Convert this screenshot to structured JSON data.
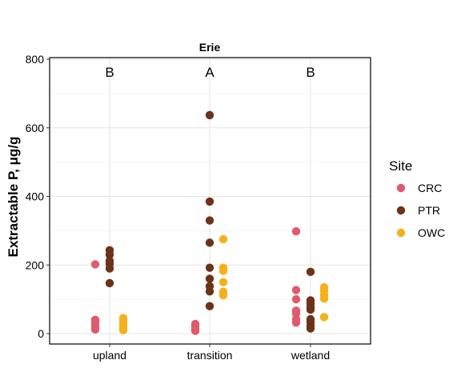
{
  "chart_data": {
    "type": "scatter",
    "title": "Erie",
    "xlabel": "",
    "ylabel": "Extractable P, μg/g",
    "categories": [
      "upland",
      "transition",
      "wetland"
    ],
    "ylim": [
      -25,
      800
    ],
    "yticks": [
      0,
      200,
      400,
      600,
      800
    ],
    "grid": true,
    "legend": {
      "title": "Site",
      "position": "right"
    },
    "letters": [
      {
        "category": "upland",
        "label": "B"
      },
      {
        "category": "transition",
        "label": "A"
      },
      {
        "category": "wetland",
        "label": "B"
      }
    ],
    "series": [
      {
        "name": "CRC",
        "color": "#E05A6F",
        "points": [
          {
            "category": "upland",
            "y": 202
          },
          {
            "category": "upland",
            "y": 40
          },
          {
            "category": "upland",
            "y": 32
          },
          {
            "category": "upland",
            "y": 25
          },
          {
            "category": "upland",
            "y": 18
          },
          {
            "category": "upland",
            "y": 12
          },
          {
            "category": "transition",
            "y": 28
          },
          {
            "category": "transition",
            "y": 20
          },
          {
            "category": "transition",
            "y": 12
          },
          {
            "category": "transition",
            "y": 8
          },
          {
            "category": "wetland",
            "y": 298
          },
          {
            "category": "wetland",
            "y": 127
          },
          {
            "category": "wetland",
            "y": 100
          },
          {
            "category": "wetland",
            "y": 67
          },
          {
            "category": "wetland",
            "y": 58
          },
          {
            "category": "wetland",
            "y": 42
          },
          {
            "category": "wetland",
            "y": 32
          }
        ]
      },
      {
        "name": "PTR",
        "color": "#6B3419",
        "points": [
          {
            "category": "upland",
            "y": 243
          },
          {
            "category": "upland",
            "y": 230
          },
          {
            "category": "upland",
            "y": 212
          },
          {
            "category": "upland",
            "y": 203
          },
          {
            "category": "upland",
            "y": 190
          },
          {
            "category": "upland",
            "y": 147
          },
          {
            "category": "transition",
            "y": 637
          },
          {
            "category": "transition",
            "y": 385
          },
          {
            "category": "transition",
            "y": 330
          },
          {
            "category": "transition",
            "y": 265
          },
          {
            "category": "transition",
            "y": 192
          },
          {
            "category": "transition",
            "y": 160
          },
          {
            "category": "transition",
            "y": 138
          },
          {
            "category": "transition",
            "y": 123
          },
          {
            "category": "transition",
            "y": 80
          },
          {
            "category": "wetland",
            "y": 180
          },
          {
            "category": "wetland",
            "y": 97
          },
          {
            "category": "wetland",
            "y": 88
          },
          {
            "category": "wetland",
            "y": 78
          },
          {
            "category": "wetland",
            "y": 70
          },
          {
            "category": "wetland",
            "y": 42
          },
          {
            "category": "wetland",
            "y": 33
          },
          {
            "category": "wetland",
            "y": 22
          },
          {
            "category": "wetland",
            "y": 15
          }
        ]
      },
      {
        "name": "OWC",
        "color": "#F6B01A",
        "points": [
          {
            "category": "upland",
            "y": 45
          },
          {
            "category": "upland",
            "y": 36
          },
          {
            "category": "upland",
            "y": 25
          },
          {
            "category": "upland",
            "y": 17
          },
          {
            "category": "upland",
            "y": 10
          },
          {
            "category": "transition",
            "y": 275
          },
          {
            "category": "transition",
            "y": 192
          },
          {
            "category": "transition",
            "y": 183
          },
          {
            "category": "transition",
            "y": 150
          },
          {
            "category": "transition",
            "y": 122
          },
          {
            "category": "transition",
            "y": 112
          },
          {
            "category": "wetland",
            "y": 135
          },
          {
            "category": "wetland",
            "y": 125
          },
          {
            "category": "wetland",
            "y": 112
          },
          {
            "category": "wetland",
            "y": 102
          },
          {
            "category": "wetland",
            "y": 48
          }
        ]
      }
    ]
  }
}
